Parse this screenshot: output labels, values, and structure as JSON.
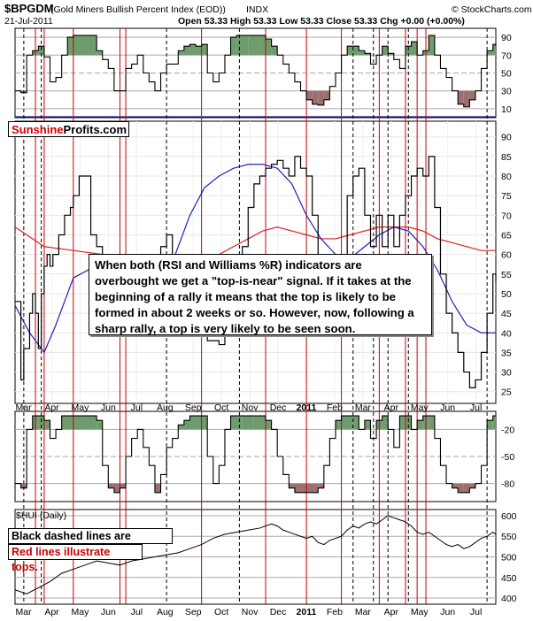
{
  "header": {
    "symbol": "$BPGDM",
    "name": "(Gold Miners Bullish Percent Index (EOD))",
    "exchange": "INDX",
    "date": "21-Jul-2011",
    "ohlc": "Open 53.33  High 53.33  Low 53.33  Close 53.33  Chg +0.00 (+0.00%)",
    "provider": "© StockCharts.com"
  },
  "logo": {
    "part1": "Sunshine",
    "part2": "Profits.com"
  },
  "annotation": "When both (RSI and Williams %R) indicators are overbought we get a \"top-is-near\" signal. If it takes at the beginning of a rally it means that the top is likely to be formed in about 2 weeks or so. However, now, following a sharp rally, a top is very likely to be seen soon.",
  "legend": {
    "black": "Black dashed lines are signals.",
    "red": "Red lines illustrate tops."
  },
  "colors": {
    "positive": "#6f9c6f",
    "negative": "#9c7070",
    "ma_short": "#2222bb",
    "ma_long": "#dd2222",
    "top_line": "#cc0000"
  },
  "chart_data": {
    "type": "line",
    "x_months": [
      "Mar",
      "Apr",
      "May",
      "Jun",
      "Jul",
      "Aug",
      "Sep",
      "Oct",
      "Nov",
      "Dec",
      "2011",
      "Feb",
      "Mar",
      "Apr",
      "May",
      "Jun",
      "Jul"
    ],
    "panels": [
      {
        "name": "rsi",
        "yticks": [
          90,
          70,
          50,
          30,
          10
        ],
        "ylim": [
          0,
          100
        ]
      },
      {
        "name": "main",
        "yticks": [
          90,
          85,
          80,
          75,
          70,
          65,
          60,
          55,
          50,
          45,
          40,
          35,
          30,
          25
        ],
        "ylim": [
          22,
          94
        ]
      },
      {
        "name": "williams",
        "yticks": [
          -20,
          -50,
          -80
        ],
        "ylim": [
          -100,
          0
        ]
      },
      {
        "label": "$HUI (Daily)",
        "name": "hui",
        "yticks": [
          600,
          550,
          500,
          450,
          400
        ],
        "ylim": [
          385,
          615
        ]
      }
    ],
    "bpgdm": [
      [
        0,
        48
      ],
      [
        2,
        28
      ],
      [
        3,
        36
      ],
      [
        4,
        36
      ],
      [
        5,
        45
      ],
      [
        6,
        50
      ],
      [
        7,
        45
      ],
      [
        8,
        36
      ],
      [
        9,
        50
      ],
      [
        10,
        57
      ],
      [
        11,
        60
      ],
      [
        12,
        57
      ],
      [
        13,
        60
      ],
      [
        15,
        65
      ],
      [
        17,
        70
      ],
      [
        19,
        72
      ],
      [
        20,
        75
      ],
      [
        22,
        80
      ],
      [
        24,
        80
      ],
      [
        26,
        65
      ],
      [
        28,
        62
      ],
      [
        30,
        47
      ],
      [
        32,
        40
      ],
      [
        34,
        40
      ],
      [
        36,
        48
      ],
      [
        38,
        53
      ],
      [
        40,
        48
      ],
      [
        42,
        48
      ],
      [
        44,
        50
      ],
      [
        46,
        55
      ],
      [
        48,
        60
      ],
      [
        50,
        62
      ],
      [
        52,
        65
      ],
      [
        54,
        60
      ],
      [
        56,
        50
      ],
      [
        58,
        45
      ],
      [
        60,
        45
      ],
      [
        62,
        42
      ],
      [
        64,
        40
      ],
      [
        66,
        38
      ],
      [
        68,
        38
      ],
      [
        70,
        37
      ],
      [
        72,
        40
      ],
      [
        74,
        50
      ],
      [
        76,
        55
      ],
      [
        78,
        62
      ],
      [
        80,
        72
      ],
      [
        82,
        78
      ],
      [
        84,
        80
      ],
      [
        86,
        82
      ],
      [
        88,
        83
      ],
      [
        90,
        84
      ],
      [
        92,
        82
      ],
      [
        94,
        80
      ],
      [
        96,
        85
      ],
      [
        98,
        82
      ],
      [
        100,
        80
      ],
      [
        102,
        70
      ],
      [
        104,
        55
      ],
      [
        106,
        46
      ],
      [
        108,
        48
      ],
      [
        110,
        50
      ],
      [
        112,
        60
      ],
      [
        114,
        75
      ],
      [
        116,
        80
      ],
      [
        118,
        82
      ],
      [
        120,
        70
      ],
      [
        122,
        62
      ],
      [
        124,
        70
      ],
      [
        126,
        62
      ],
      [
        128,
        70
      ],
      [
        130,
        62
      ],
      [
        132,
        70
      ],
      [
        134,
        75
      ],
      [
        136,
        80
      ],
      [
        138,
        82
      ],
      [
        140,
        80
      ],
      [
        142,
        85
      ],
      [
        144,
        72
      ],
      [
        146,
        55
      ],
      [
        148,
        45
      ],
      [
        150,
        40
      ],
      [
        152,
        35
      ],
      [
        154,
        30
      ],
      [
        156,
        26
      ],
      [
        158,
        28
      ],
      [
        160,
        35
      ],
      [
        162,
        45
      ],
      [
        164,
        55
      ],
      [
        165,
        53
      ]
    ],
    "bpgdm_x_range": [
      0,
      165
    ],
    "ma_short": [
      [
        0,
        47
      ],
      [
        5,
        40
      ],
      [
        10,
        35
      ],
      [
        14,
        42
      ],
      [
        20,
        54
      ],
      [
        30,
        58
      ],
      [
        40,
        56
      ],
      [
        45,
        54
      ],
      [
        50,
        55
      ],
      [
        55,
        60
      ],
      [
        60,
        70
      ],
      [
        65,
        77
      ],
      [
        70,
        80
      ],
      [
        75,
        82
      ],
      [
        80,
        83
      ],
      [
        85,
        83
      ],
      [
        90,
        82
      ],
      [
        95,
        78
      ],
      [
        100,
        70
      ],
      [
        105,
        64
      ],
      [
        110,
        60
      ],
      [
        115,
        59
      ],
      [
        120,
        62
      ],
      [
        125,
        65
      ],
      [
        130,
        67
      ],
      [
        135,
        66
      ],
      [
        140,
        62
      ],
      [
        145,
        56
      ],
      [
        150,
        48
      ],
      [
        155,
        42
      ],
      [
        160,
        40
      ],
      [
        165,
        40
      ]
    ],
    "ma_long": [
      [
        0,
        67
      ],
      [
        10,
        62
      ],
      [
        20,
        61
      ],
      [
        30,
        60
      ],
      [
        40,
        58
      ],
      [
        50,
        55
      ],
      [
        55,
        54
      ],
      [
        60,
        56
      ],
      [
        65,
        58
      ],
      [
        70,
        60
      ],
      [
        75,
        62
      ],
      [
        80,
        64
      ],
      [
        85,
        66
      ],
      [
        90,
        67
      ],
      [
        95,
        66
      ],
      [
        100,
        65
      ],
      [
        105,
        64
      ],
      [
        110,
        64
      ],
      [
        115,
        65
      ],
      [
        120,
        66
      ],
      [
        125,
        67
      ],
      [
        130,
        67
      ],
      [
        135,
        67
      ],
      [
        140,
        66
      ],
      [
        145,
        64
      ],
      [
        150,
        63
      ],
      [
        155,
        62
      ],
      [
        160,
        61
      ],
      [
        165,
        61
      ]
    ],
    "rsi": [
      [
        0,
        30
      ],
      [
        2,
        28
      ],
      [
        4,
        70
      ],
      [
        6,
        75
      ],
      [
        8,
        80
      ],
      [
        10,
        68
      ],
      [
        12,
        40
      ],
      [
        14,
        45
      ],
      [
        16,
        70
      ],
      [
        18,
        90
      ],
      [
        20,
        92
      ],
      [
        24,
        92
      ],
      [
        28,
        75
      ],
      [
        30,
        65
      ],
      [
        32,
        55
      ],
      [
        34,
        30
      ],
      [
        36,
        30
      ],
      [
        38,
        55
      ],
      [
        40,
        60
      ],
      [
        42,
        70
      ],
      [
        44,
        50
      ],
      [
        46,
        40
      ],
      [
        48,
        30
      ],
      [
        50,
        50
      ],
      [
        52,
        60
      ],
      [
        54,
        60
      ],
      [
        56,
        75
      ],
      [
        58,
        80
      ],
      [
        60,
        82
      ],
      [
        62,
        80
      ],
      [
        64,
        82
      ],
      [
        66,
        50
      ],
      [
        68,
        40
      ],
      [
        70,
        50
      ],
      [
        72,
        70
      ],
      [
        74,
        90
      ],
      [
        76,
        92
      ],
      [
        80,
        92
      ],
      [
        84,
        92
      ],
      [
        86,
        88
      ],
      [
        88,
        80
      ],
      [
        90,
        70
      ],
      [
        92,
        60
      ],
      [
        94,
        50
      ],
      [
        96,
        40
      ],
      [
        98,
        30
      ],
      [
        100,
        20
      ],
      [
        102,
        15
      ],
      [
        104,
        14
      ],
      [
        106,
        20
      ],
      [
        108,
        35
      ],
      [
        110,
        50
      ],
      [
        112,
        70
      ],
      [
        114,
        80
      ],
      [
        116,
        80
      ],
      [
        118,
        75
      ],
      [
        120,
        72
      ],
      [
        122,
        60
      ],
      [
        124,
        70
      ],
      [
        126,
        80
      ],
      [
        128,
        72
      ],
      [
        130,
        65
      ],
      [
        132,
        55
      ],
      [
        134,
        80
      ],
      [
        136,
        85
      ],
      [
        138,
        70
      ],
      [
        140,
        75
      ],
      [
        142,
        92
      ],
      [
        144,
        70
      ],
      [
        146,
        55
      ],
      [
        148,
        45
      ],
      [
        150,
        30
      ],
      [
        152,
        15
      ],
      [
        154,
        12
      ],
      [
        156,
        20
      ],
      [
        158,
        30
      ],
      [
        160,
        55
      ],
      [
        162,
        75
      ],
      [
        164,
        82
      ],
      [
        165,
        80
      ]
    ],
    "williams": [
      [
        0,
        -80
      ],
      [
        2,
        -85
      ],
      [
        4,
        -20
      ],
      [
        6,
        -5
      ],
      [
        8,
        -5
      ],
      [
        10,
        -10
      ],
      [
        12,
        -30
      ],
      [
        14,
        -20
      ],
      [
        16,
        -5
      ],
      [
        20,
        -5
      ],
      [
        24,
        -5
      ],
      [
        28,
        -10
      ],
      [
        30,
        -60
      ],
      [
        32,
        -85
      ],
      [
        34,
        -90
      ],
      [
        36,
        -85
      ],
      [
        38,
        -50
      ],
      [
        40,
        -30
      ],
      [
        42,
        -20
      ],
      [
        44,
        -40
      ],
      [
        46,
        -60
      ],
      [
        48,
        -90
      ],
      [
        50,
        -70
      ],
      [
        52,
        -40
      ],
      [
        54,
        -30
      ],
      [
        56,
        -15
      ],
      [
        58,
        -10
      ],
      [
        60,
        -5
      ],
      [
        64,
        -5
      ],
      [
        66,
        -50
      ],
      [
        68,
        -80
      ],
      [
        70,
        -60
      ],
      [
        72,
        -20
      ],
      [
        74,
        -5
      ],
      [
        78,
        -5
      ],
      [
        82,
        -5
      ],
      [
        86,
        -10
      ],
      [
        88,
        -20
      ],
      [
        90,
        -50
      ],
      [
        92,
        -70
      ],
      [
        94,
        -85
      ],
      [
        96,
        -90
      ],
      [
        100,
        -90
      ],
      [
        104,
        -85
      ],
      [
        106,
        -60
      ],
      [
        108,
        -30
      ],
      [
        110,
        -10
      ],
      [
        112,
        -5
      ],
      [
        116,
        -5
      ],
      [
        118,
        -20
      ],
      [
        120,
        -10
      ],
      [
        122,
        -30
      ],
      [
        124,
        -10
      ],
      [
        126,
        -5
      ],
      [
        128,
        -20
      ],
      [
        130,
        -40
      ],
      [
        132,
        -5
      ],
      [
        134,
        -5
      ],
      [
        136,
        -20
      ],
      [
        138,
        -10
      ],
      [
        140,
        -5
      ],
      [
        142,
        -5
      ],
      [
        144,
        -30
      ],
      [
        146,
        -60
      ],
      [
        148,
        -80
      ],
      [
        150,
        -85
      ],
      [
        152,
        -90
      ],
      [
        154,
        -90
      ],
      [
        156,
        -85
      ],
      [
        158,
        -80
      ],
      [
        160,
        -60
      ],
      [
        162,
        -10
      ],
      [
        164,
        -5
      ],
      [
        165,
        -5
      ]
    ],
    "hui": [
      [
        0,
        420
      ],
      [
        4,
        410
      ],
      [
        8,
        425
      ],
      [
        12,
        440
      ],
      [
        16,
        460
      ],
      [
        20,
        470
      ],
      [
        24,
        480
      ],
      [
        28,
        490
      ],
      [
        32,
        485
      ],
      [
        36,
        480
      ],
      [
        40,
        490
      ],
      [
        44,
        495
      ],
      [
        48,
        500
      ],
      [
        52,
        505
      ],
      [
        56,
        510
      ],
      [
        60,
        520
      ],
      [
        64,
        530
      ],
      [
        68,
        545
      ],
      [
        72,
        555
      ],
      [
        76,
        560
      ],
      [
        80,
        565
      ],
      [
        84,
        570
      ],
      [
        88,
        580
      ],
      [
        90,
        575
      ],
      [
        92,
        565
      ],
      [
        94,
        560
      ],
      [
        96,
        555
      ],
      [
        98,
        550
      ],
      [
        100,
        545
      ],
      [
        102,
        550
      ],
      [
        104,
        535
      ],
      [
        106,
        530
      ],
      [
        108,
        540
      ],
      [
        110,
        545
      ],
      [
        112,
        550
      ],
      [
        114,
        565
      ],
      [
        116,
        575
      ],
      [
        118,
        570
      ],
      [
        120,
        580
      ],
      [
        122,
        585
      ],
      [
        124,
        580
      ],
      [
        126,
        590
      ],
      [
        128,
        600
      ],
      [
        130,
        595
      ],
      [
        132,
        590
      ],
      [
        134,
        585
      ],
      [
        136,
        575
      ],
      [
        138,
        560
      ],
      [
        140,
        555
      ],
      [
        142,
        560
      ],
      [
        144,
        550
      ],
      [
        146,
        540
      ],
      [
        148,
        530
      ],
      [
        150,
        525
      ],
      [
        152,
        530
      ],
      [
        154,
        520
      ],
      [
        156,
        525
      ],
      [
        158,
        535
      ],
      [
        160,
        545
      ],
      [
        162,
        550
      ],
      [
        164,
        560
      ],
      [
        165,
        555
      ]
    ],
    "signals_dashed_x": [
      3,
      9,
      52,
      77,
      116,
      123,
      128,
      135,
      162
    ],
    "tops_red_x": [
      7,
      10,
      20,
      36,
      38,
      64,
      86,
      100,
      112,
      125,
      134,
      138,
      141
    ]
  }
}
